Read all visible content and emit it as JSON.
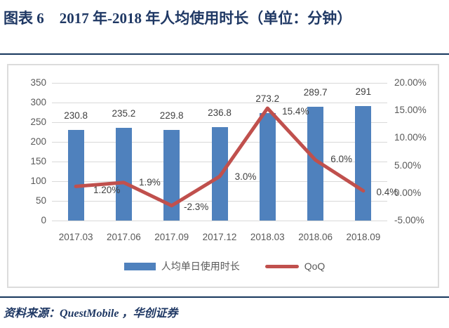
{
  "title": {
    "prefix": "图表 6",
    "main": "2017 年-2018 年人均使用时长（单位：分钟）"
  },
  "chart_data": {
    "type": "bar+line combo",
    "categories": [
      "2017.03",
      "2017.06",
      "2017.09",
      "2017.12",
      "2018.03",
      "2018.06",
      "2018.09"
    ],
    "series": [
      {
        "name": "人均单日使用时长",
        "type": "bar",
        "axis": "left",
        "values": [
          230.8,
          235.2,
          229.8,
          236.8,
          273.2,
          289.7,
          291
        ],
        "data_labels": [
          "230.8",
          "235.2",
          "229.8",
          "236.8",
          "273.2",
          "289.7",
          "291"
        ],
        "color": "#4F81BD"
      },
      {
        "name": "QoQ",
        "type": "line",
        "axis": "right",
        "values": [
          1.2,
          1.9,
          -2.3,
          3.0,
          15.4,
          6.0,
          0.4
        ],
        "data_labels": [
          "1.20%",
          "1.9%",
          "-2.3%",
          "3.0%",
          "15.4%",
          "6.0%",
          "0.4%"
        ],
        "color": "#C0504D"
      }
    ],
    "left_axis": {
      "min": 0,
      "max": 350,
      "step": 50,
      "tick_labels": [
        "0",
        "50",
        "100",
        "150",
        "200",
        "250",
        "300",
        "350"
      ]
    },
    "right_axis": {
      "min": -5,
      "max": 20,
      "step": 5,
      "tick_labels": [
        "-5.00%",
        "0.00%",
        "5.00%",
        "10.00%",
        "15.00%",
        "20.00%"
      ]
    },
    "grid": true,
    "legend_position": "bottom"
  },
  "legend": {
    "bar_label": "人均单日使用时长",
    "line_label": "QoQ"
  },
  "source": {
    "prefix": "资料来源：",
    "text": "QuestMobile ，华创证券"
  },
  "colors": {
    "bar": "#4F81BD",
    "line": "#C0504D",
    "title_navy": "#1F3864",
    "rule_navy": "#17375D",
    "gridline": "#D9D9D9",
    "tick_text": "#595959",
    "data_label_text": "#404040"
  }
}
